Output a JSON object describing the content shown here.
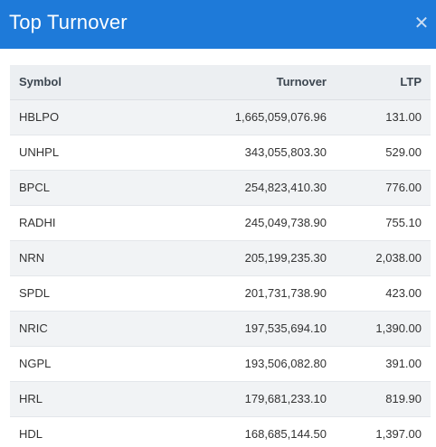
{
  "modal": {
    "title": "Top Turnover",
    "close_symbol": "✕"
  },
  "table": {
    "headers": {
      "symbol": "Symbol",
      "turnover": "Turnover",
      "ltp": "LTP"
    },
    "rows": [
      {
        "symbol": "HBLPO",
        "turnover": "1,665,059,076.96",
        "ltp": "131.00"
      },
      {
        "symbol": "UNHPL",
        "turnover": "343,055,803.30",
        "ltp": "529.00"
      },
      {
        "symbol": "BPCL",
        "turnover": "254,823,410.30",
        "ltp": "776.00"
      },
      {
        "symbol": "RADHI",
        "turnover": "245,049,738.90",
        "ltp": "755.10"
      },
      {
        "symbol": "NRN",
        "turnover": "205,199,235.30",
        "ltp": "2,038.00"
      },
      {
        "symbol": "SPDL",
        "turnover": "201,731,738.90",
        "ltp": "423.00"
      },
      {
        "symbol": "NRIC",
        "turnover": "197,535,694.10",
        "ltp": "1,390.00"
      },
      {
        "symbol": "NGPL",
        "turnover": "193,506,082.80",
        "ltp": "391.00"
      },
      {
        "symbol": "HRL",
        "turnover": "179,681,233.10",
        "ltp": "819.90"
      },
      {
        "symbol": "HDL",
        "turnover": "168,685,144.50",
        "ltp": "1,397.00"
      }
    ]
  }
}
